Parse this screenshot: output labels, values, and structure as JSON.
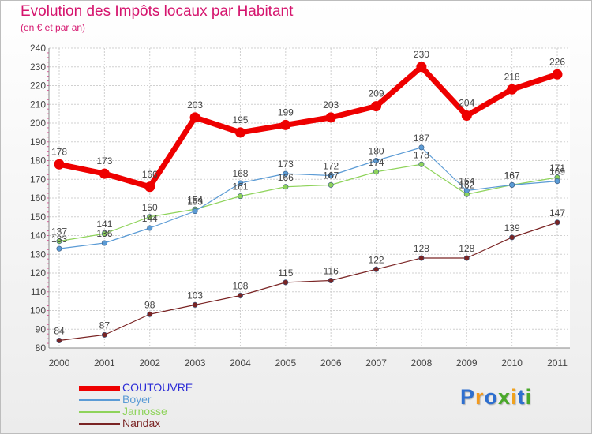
{
  "title": "Evolution des Impôts locaux par Habitant",
  "subtitle": "(en € et par an)",
  "logo_letters": [
    {
      "ch": "P",
      "color": "#2e6fcf"
    },
    {
      "ch": "r",
      "color": "#f39a1e"
    },
    {
      "ch": "o",
      "color": "#2e6fcf"
    },
    {
      "ch": "x",
      "color": "#4aa82a"
    },
    {
      "ch": "i",
      "color": "#f0a21e"
    },
    {
      "ch": "t",
      "color": "#2e6fcf"
    },
    {
      "ch": "i",
      "color": "#4aa82a"
    }
  ],
  "chart_data": {
    "type": "line",
    "title": "Evolution des Impôts locaux par Habitant",
    "subtitle": "(en € et par an)",
    "xlabel": "",
    "ylabel": "",
    "ylim": [
      80,
      240
    ],
    "y_ticks": [
      "80",
      "90",
      "100",
      "110",
      "120",
      "130",
      "140",
      "150",
      "160",
      "170",
      "180",
      "190",
      "200",
      "210",
      "220",
      "230",
      "240"
    ],
    "categories": [
      "2000",
      "2001",
      "2002",
      "2003",
      "2004",
      "2005",
      "2006",
      "2007",
      "2008",
      "2009",
      "2010",
      "2011"
    ],
    "grid": true,
    "legend_position": "bottom-left",
    "series": [
      {
        "name": "COUTOUVRE",
        "color": "#ee0000",
        "label_color": "#2b2bd6",
        "values": [
          178,
          173,
          166,
          203,
          195,
          199,
          203,
          209,
          230,
          204,
          218,
          226
        ],
        "value_labels": [
          "178",
          "173",
          "166",
          "203",
          "195",
          "199",
          "203",
          "209",
          "230",
          "204",
          "218",
          "226"
        ]
      },
      {
        "name": "Boyer",
        "color": "#5b9bd5",
        "label_color": "#5b9bd5",
        "values": [
          133,
          136,
          144,
          153,
          168,
          173,
          172,
          180,
          187,
          164,
          167,
          169
        ],
        "value_labels": [
          "133",
          "136",
          "144",
          "153",
          "168",
          "173",
          "172",
          "180",
          "187",
          "164",
          "167",
          "169"
        ]
      },
      {
        "name": "Jarnosse",
        "color": "#8ed35a",
        "label_color": "#8ed35a",
        "values": [
          137,
          141,
          150,
          154,
          161,
          166,
          167,
          174,
          178,
          162,
          167,
          171
        ],
        "value_labels": [
          "137",
          "141",
          "150",
          "154",
          "161",
          "166",
          "167",
          "174",
          "178",
          "162",
          "167",
          "171"
        ]
      },
      {
        "name": "Nandax",
        "color": "#7a2424",
        "label_color": "#7a2424",
        "values": [
          84,
          87,
          98,
          103,
          108,
          115,
          116,
          122,
          128,
          128,
          139,
          147
        ],
        "value_labels": [
          "84",
          "87",
          "98",
          "103",
          "108",
          "115",
          "116",
          "122",
          "128",
          "128",
          "139",
          "147"
        ]
      }
    ]
  }
}
